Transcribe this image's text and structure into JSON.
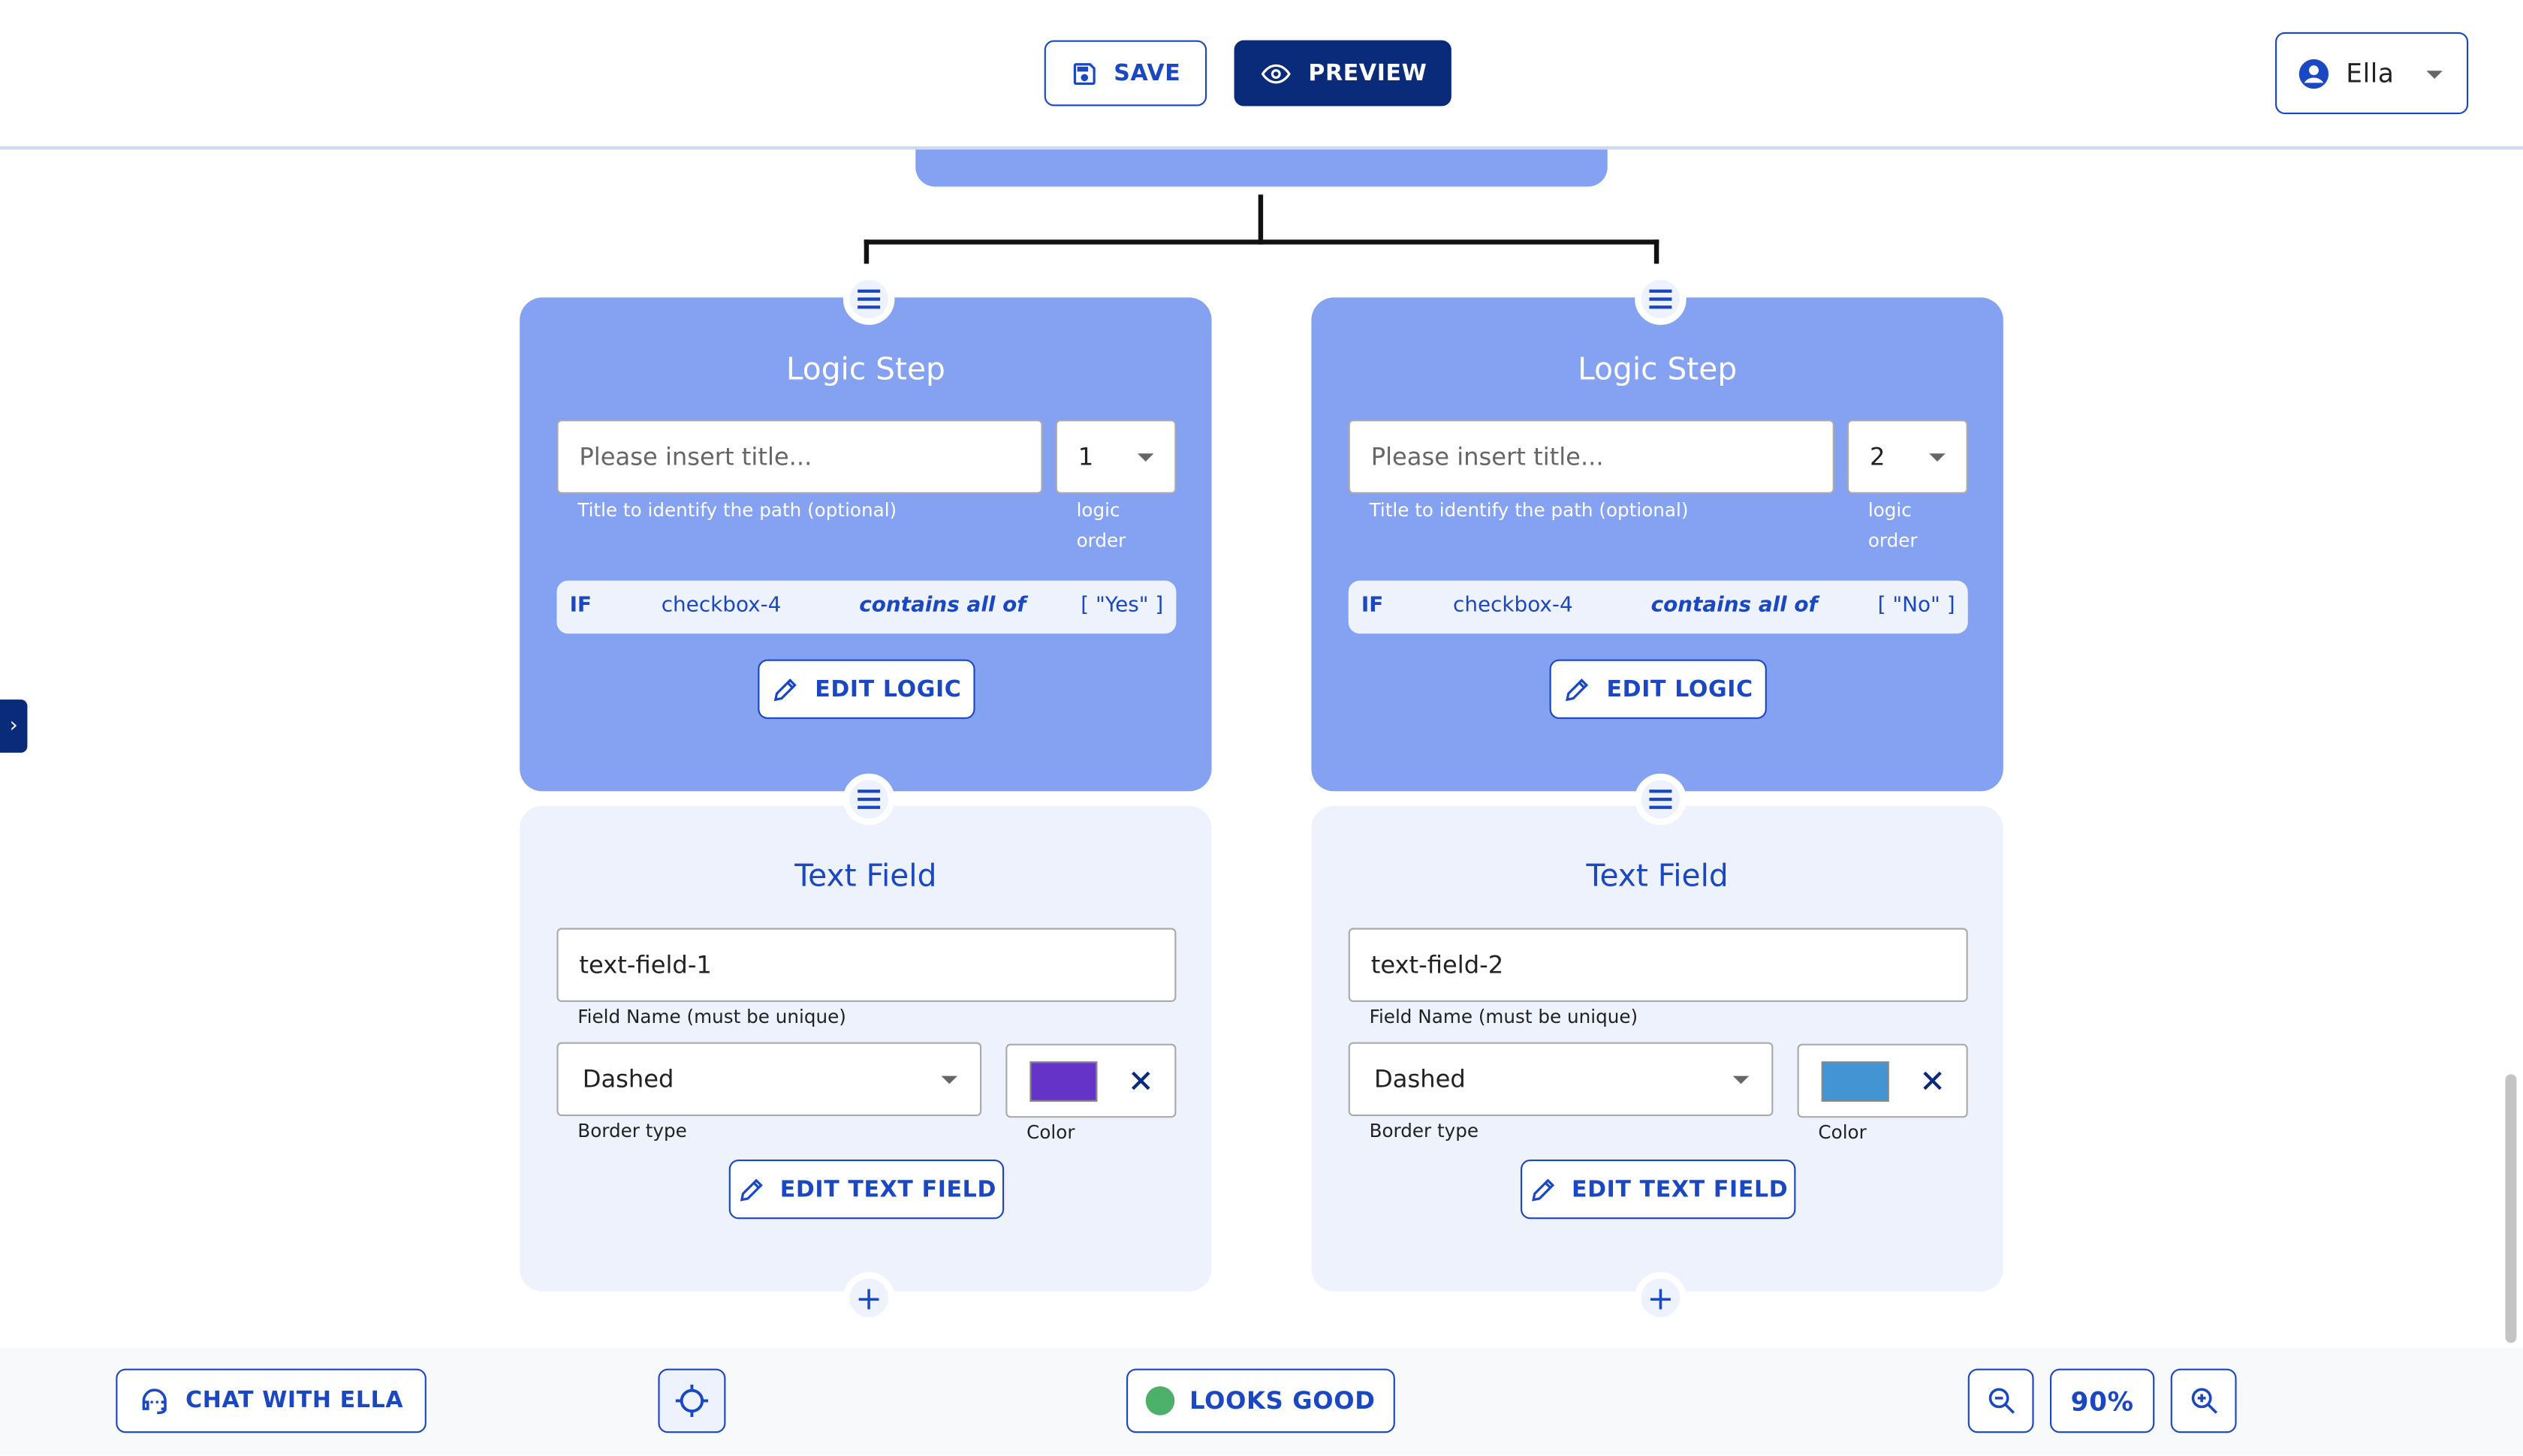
{
  "header": {
    "save_label": "SAVE",
    "preview_label": "PREVIEW",
    "user_name": "Ella"
  },
  "colors": {
    "primary": "#1a47c2",
    "navy": "#0a2a7a",
    "logic_bg": "#84a1f2",
    "card_bg": "#eef2fd",
    "status_ok": "#4caf6a"
  },
  "branches": [
    {
      "logic": {
        "title": "Logic Step",
        "title_placeholder": "Please insert title...",
        "title_helper": "Title to identify the path (optional)",
        "order_value": "1",
        "order_helper_1": "logic",
        "order_helper_2": "order",
        "if_label": "IF",
        "field": "checkbox-4",
        "operator": "contains all of",
        "value": "[ \"Yes\" ]",
        "edit_label": "EDIT LOGIC"
      },
      "text_field": {
        "title": "Text Field",
        "name_value": "text-field-1",
        "name_helper": "Field Name (must be unique)",
        "border_value": "Dashed",
        "border_helper": "Border type",
        "color_helper": "Color",
        "color": "#6633c8",
        "edit_label": "EDIT TEXT FIELD"
      }
    },
    {
      "logic": {
        "title": "Logic Step",
        "title_placeholder": "Please insert title...",
        "title_helper": "Title to identify the path (optional)",
        "order_value": "2",
        "order_helper_1": "logic",
        "order_helper_2": "order",
        "if_label": "IF",
        "field": "checkbox-4",
        "operator": "contains all of",
        "value": "[ \"No\" ]",
        "edit_label": "EDIT LOGIC"
      },
      "text_field": {
        "title": "Text Field",
        "name_value": "text-field-2",
        "name_helper": "Field Name (must be unique)",
        "border_value": "Dashed",
        "border_helper": "Border type",
        "color_helper": "Color",
        "color": "#4394d2",
        "edit_label": "EDIT TEXT FIELD"
      }
    }
  ],
  "bottom": {
    "chat_label": "CHAT WITH ELLA",
    "status_label": "LOOKS GOOD",
    "zoom_level": "90%"
  }
}
